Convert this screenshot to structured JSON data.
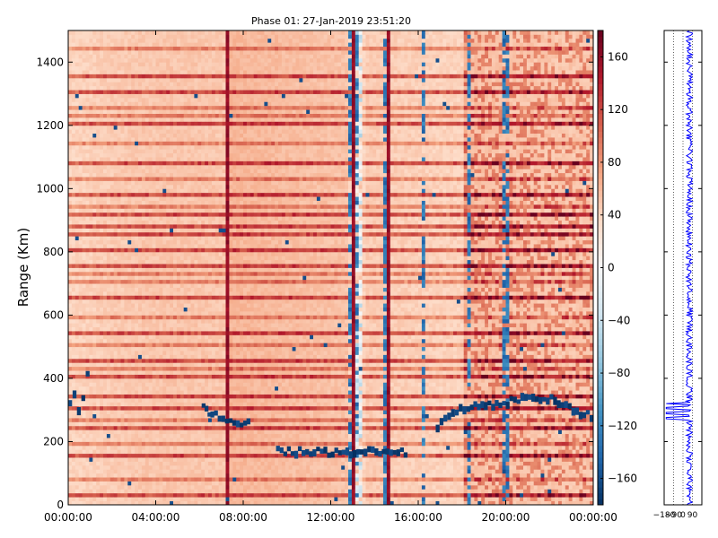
{
  "chart_data": [
    {
      "type": "heatmap",
      "title": "Phase 01: 27-Jan-2019 23:51:20",
      "xlabel": "",
      "ylabel": "Range (Km)",
      "x_ticks": [
        "00:00:00",
        "04:00:00",
        "08:00:00",
        "12:00:00",
        "16:00:00",
        "20:00:00",
        "00:00:00"
      ],
      "x_tick_hours": [
        0,
        4,
        8,
        12,
        16,
        20,
        24
      ],
      "xlim_hours": [
        0,
        24
      ],
      "y_ticks": [
        0,
        200,
        400,
        600,
        800,
        1000,
        1200,
        1400
      ],
      "ylim": [
        0,
        1500
      ],
      "colorbar": {
        "ticks": [
          160,
          120,
          80,
          40,
          0,
          -40,
          -80,
          -120,
          -160
        ],
        "range": [
          -180,
          180
        ],
        "colormap": "RdBu_r"
      },
      "colors": {
        "neg_max": "#053061",
        "neutral": "#f7f7f7",
        "pos_max": "#67001f"
      },
      "strong_rows_km": [
        25,
        160,
        240,
        300,
        345,
        400,
        460,
        540,
        660,
        760,
        800,
        850,
        880,
        915,
        975,
        1080,
        1200,
        1300,
        1360
      ],
      "medium_rows_km": [
        80,
        195,
        270,
        430,
        500,
        590,
        700,
        725,
        940,
        1030,
        1140,
        1230,
        1260,
        1440
      ],
      "bright_columns_hours": [
        7.25,
        12.95,
        13.05,
        14.6,
        20.0
      ],
      "dark_columns_hours": [
        12.9,
        13.25,
        14.45,
        16.2,
        18.25,
        19.9,
        20.0
      ],
      "high_activity_start_hours": 18.2,
      "echo_tracks": [
        {
          "name": "",
          "hours": [
            0.0,
            0.2,
            0.4,
            0.6,
            0.8,
            1.0
          ],
          "km": [
            320,
            350,
            300,
            340,
            420,
            480
          ]
        },
        {
          "name": "",
          "hours": [
            6.1,
            6.5,
            7.0,
            7.5,
            8.0,
            8.3
          ],
          "km": [
            300,
            285,
            270,
            260,
            250,
            260
          ]
        },
        {
          "name": "",
          "hours": [
            9.5,
            10.5,
            11.5,
            12.5,
            13.5,
            14.5,
            15.5
          ],
          "km": [
            165,
            163,
            162,
            163,
            165,
            164,
            163
          ]
        },
        {
          "name": "",
          "hours": [
            16.8,
            17.5,
            18.2,
            19.0,
            20.0,
            21.0,
            22.0,
            23.0,
            24.0
          ],
          "km": [
            250,
            290,
            305,
            310,
            320,
            340,
            335,
            300,
            270
          ]
        }
      ]
    },
    {
      "type": "line",
      "title": "",
      "xlabel": "",
      "ylabel": "",
      "x_ticks": [
        "-180",
        "-90",
        "0",
        "90"
      ],
      "xlim": [
        -180,
        180
      ],
      "ylim": [
        0,
        1500
      ],
      "line_color": "#0000ff",
      "baseline_value": 60,
      "jitter": 30,
      "dip_range_km": [
        270,
        320
      ],
      "dip_value": -160
    }
  ]
}
